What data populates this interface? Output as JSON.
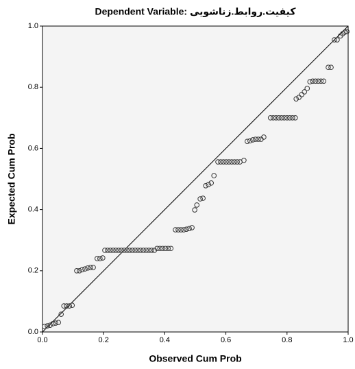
{
  "chart_data": {
    "type": "scatter",
    "title": "Dependent Variable: کیفیت.روابط.زناشویی",
    "x_label": "Observed Cum Prob",
    "y_label": "Expected Cum Prob",
    "color": "#333333",
    "reference_line": true,
    "xlim": [
      0,
      1
    ],
    "ylim": [
      0,
      1
    ],
    "xticks": [
      {
        "value": 0,
        "label": "0.0"
      },
      0.2,
      0.4,
      0.6,
      0.8,
      {
        "value": 1,
        "label": "1.0"
      }
    ],
    "yticks": [
      {
        "value": 0,
        "label": "0.0"
      },
      0.2,
      0.4,
      0.6,
      0.8,
      {
        "value": 1,
        "label": "1.0"
      }
    ],
    "x": [
      0.007,
      0.016,
      0.025,
      0.034,
      0.043,
      0.052,
      0.061,
      0.07,
      0.079,
      0.088,
      0.097,
      0.112,
      0.121,
      0.13,
      0.139,
      0.148,
      0.157,
      0.166,
      0.179,
      0.188,
      0.197,
      0.204,
      0.213,
      0.222,
      0.231,
      0.24,
      0.249,
      0.258,
      0.267,
      0.276,
      0.285,
      0.294,
      0.303,
      0.312,
      0.321,
      0.33,
      0.339,
      0.348,
      0.357,
      0.366,
      0.375,
      0.384,
      0.393,
      0.402,
      0.411,
      0.42,
      0.435,
      0.444,
      0.453,
      0.462,
      0.471,
      0.48,
      0.489,
      0.498,
      0.505,
      0.516,
      0.525,
      0.534,
      0.543,
      0.552,
      0.561,
      0.574,
      0.583,
      0.592,
      0.601,
      0.61,
      0.619,
      0.628,
      0.637,
      0.646,
      0.659,
      0.67,
      0.679,
      0.688,
      0.697,
      0.706,
      0.715,
      0.724,
      0.746,
      0.755,
      0.764,
      0.773,
      0.782,
      0.791,
      0.8,
      0.809,
      0.818,
      0.827,
      0.83,
      0.839,
      0.848,
      0.857,
      0.866,
      0.875,
      0.884,
      0.893,
      0.902,
      0.911,
      0.92,
      0.935,
      0.944,
      0.955,
      0.964,
      0.975,
      0.982,
      0.989,
      0.996
    ],
    "values": [
      0.018,
      0.02,
      0.022,
      0.027,
      0.029,
      0.031,
      0.058,
      0.085,
      0.085,
      0.085,
      0.087,
      0.2,
      0.2,
      0.204,
      0.206,
      0.209,
      0.211,
      0.211,
      0.24,
      0.24,
      0.242,
      0.267,
      0.267,
      0.267,
      0.267,
      0.267,
      0.267,
      0.267,
      0.267,
      0.267,
      0.267,
      0.267,
      0.267,
      0.267,
      0.267,
      0.267,
      0.267,
      0.267,
      0.267,
      0.267,
      0.273,
      0.273,
      0.273,
      0.273,
      0.273,
      0.273,
      0.334,
      0.334,
      0.334,
      0.334,
      0.336,
      0.338,
      0.341,
      0.399,
      0.415,
      0.435,
      0.437,
      0.478,
      0.482,
      0.487,
      0.511,
      0.556,
      0.556,
      0.556,
      0.556,
      0.556,
      0.556,
      0.556,
      0.556,
      0.556,
      0.561,
      0.623,
      0.625,
      0.628,
      0.63,
      0.63,
      0.63,
      0.637,
      0.7,
      0.7,
      0.7,
      0.7,
      0.7,
      0.7,
      0.7,
      0.7,
      0.7,
      0.7,
      0.762,
      0.767,
      0.776,
      0.785,
      0.796,
      0.818,
      0.82,
      0.82,
      0.82,
      0.82,
      0.82,
      0.865,
      0.865,
      0.955,
      0.955,
      0.968,
      0.975,
      0.98,
      0.982
    ]
  }
}
